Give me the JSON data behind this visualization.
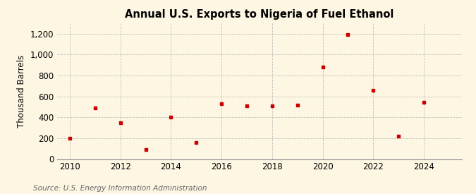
{
  "title": "Annual U.S. Exports to Nigeria of Fuel Ethanol",
  "ylabel": "Thousand Barrels",
  "source": "Source: U.S. Energy Information Administration",
  "years": [
    2010,
    2011,
    2012,
    2013,
    2014,
    2015,
    2016,
    2017,
    2018,
    2019,
    2020,
    2021,
    2022,
    2023,
    2024
  ],
  "values": [
    200,
    490,
    350,
    90,
    400,
    160,
    530,
    510,
    510,
    520,
    880,
    1190,
    660,
    220,
    545
  ],
  "marker_color": "#cc0000",
  "marker": "s",
  "marker_size": 3.5,
  "background_color": "#fdf6e3",
  "grid_color": "#aaaaaa",
  "xlim": [
    2009.5,
    2025.5
  ],
  "ylim": [
    0,
    1300
  ],
  "yticks": [
    0,
    200,
    400,
    600,
    800,
    1000,
    1200
  ],
  "xticks": [
    2010,
    2012,
    2014,
    2016,
    2018,
    2020,
    2022,
    2024
  ],
  "title_fontsize": 10.5,
  "axis_label_fontsize": 8.5,
  "tick_fontsize": 8.5,
  "source_fontsize": 7.5
}
